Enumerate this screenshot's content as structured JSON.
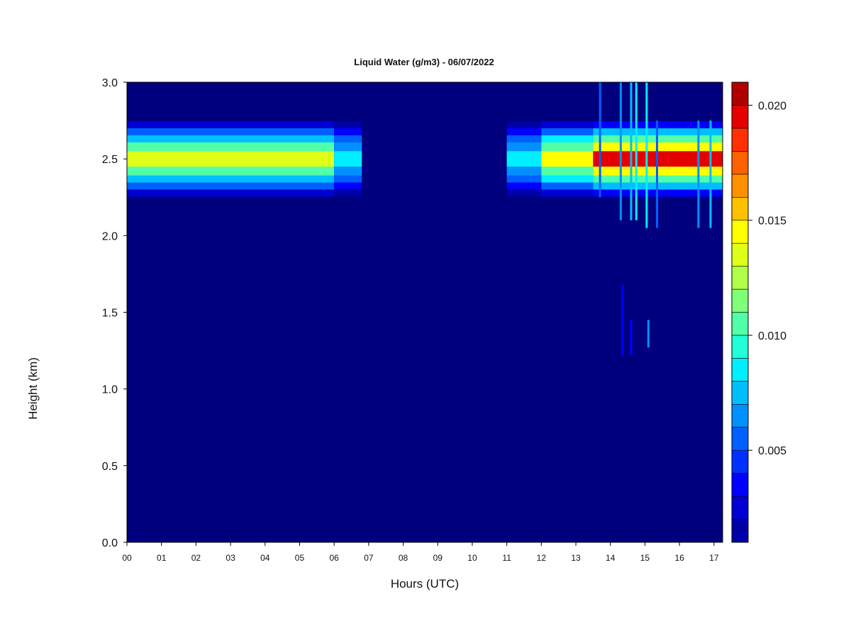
{
  "chart_data": {
    "type": "heatmap",
    "title": "Liquid Water (g/m3) - 06/07/2022",
    "xlabel": "Hours (UTC)",
    "ylabel": "Height (km)",
    "x_ticks": [
      "00",
      "01",
      "02",
      "03",
      "04",
      "05",
      "06",
      "07",
      "08",
      "09",
      "10",
      "11",
      "12",
      "13",
      "14",
      "15",
      "16",
      "17"
    ],
    "x_range": [
      0,
      17.25
    ],
    "y_ticks": [
      "0.0",
      "0.5",
      "1.0",
      "1.5",
      "2.0",
      "2.5",
      "3.0"
    ],
    "y_range": [
      0,
      3.0
    ],
    "colorbar": {
      "ticks": [
        "0.005",
        "0.010",
        "0.015",
        "0.020"
      ],
      "range": [
        0.001,
        0.021
      ],
      "levels": 20,
      "colors": [
        "#00007F",
        "#0000A8",
        "#0000D4",
        "#0000FF",
        "#0030FF",
        "#0060FF",
        "#0090FF",
        "#00BFFF",
        "#00EFFF",
        "#20FFD8",
        "#50FFA8",
        "#80FF78",
        "#B0FF48",
        "#DFFF18",
        "#FFFF00",
        "#FFC000",
        "#FF9000",
        "#FF6000",
        "#FF3000",
        "#E40000",
        "#B00000",
        "#7F0000"
      ]
    },
    "cloud_layer": {
      "center_km": 2.5,
      "half_width_km": 0.28,
      "segments": [
        {
          "start_h": 0.0,
          "end_h": 6.0,
          "peak_gm3": 0.0135
        },
        {
          "start_h": 6.0,
          "end_h": 6.8,
          "peak_gm3": 0.009
        },
        {
          "start_h": 11.0,
          "end_h": 12.0,
          "peak_gm3": 0.009
        },
        {
          "start_h": 12.0,
          "end_h": 13.5,
          "peak_gm3": 0.014
        },
        {
          "start_h": 13.5,
          "end_h": 17.25,
          "peak_gm3": 0.019
        }
      ]
    },
    "spikes": [
      {
        "hour": 13.7,
        "bottom_km": 2.25,
        "top_km": 3.0,
        "level": 0.006
      },
      {
        "hour": 14.3,
        "bottom_km": 2.1,
        "top_km": 3.0,
        "level": 0.007
      },
      {
        "hour": 14.6,
        "bottom_km": 2.1,
        "top_km": 3.0,
        "level": 0.008
      },
      {
        "hour": 14.75,
        "bottom_km": 2.1,
        "top_km": 3.0,
        "level": 0.009
      },
      {
        "hour": 15.05,
        "bottom_km": 2.05,
        "top_km": 3.0,
        "level": 0.009
      },
      {
        "hour": 15.35,
        "bottom_km": 2.05,
        "top_km": 2.75,
        "level": 0.006
      },
      {
        "hour": 16.55,
        "bottom_km": 2.05,
        "top_km": 2.75,
        "level": 0.007
      },
      {
        "hour": 16.9,
        "bottom_km": 2.05,
        "top_km": 2.75,
        "level": 0.008
      },
      {
        "hour": 14.35,
        "bottom_km": 1.22,
        "top_km": 1.68,
        "level": 0.004
      },
      {
        "hour": 14.6,
        "bottom_km": 1.22,
        "top_km": 1.45,
        "level": 0.004
      },
      {
        "hour": 15.1,
        "bottom_km": 1.27,
        "top_km": 1.45,
        "level": 0.007
      }
    ]
  }
}
